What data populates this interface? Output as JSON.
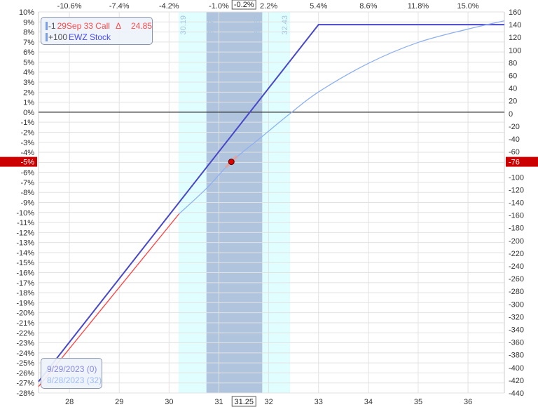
{
  "chart_data": {
    "type": "line",
    "x_ticks": [
      28,
      29,
      30,
      31,
      32,
      33,
      34,
      35,
      36
    ],
    "x_range": [
      27.38,
      36.73
    ],
    "top_ticks": [
      "-10.6%",
      "-7.4%",
      "-4.2%",
      "-1.0%",
      "2.2%",
      "5.4%",
      "8.6%",
      "11.8%",
      "15.0%"
    ],
    "top_current_label": "-0.2%",
    "current_price_label": "31.25",
    "left_axis": {
      "range": [
        -28,
        10
      ],
      "step": 1,
      "unit": "%"
    },
    "right_axis": {
      "range": [
        -440,
        160
      ],
      "step": 20
    },
    "grid": true,
    "bands": [
      {
        "from": 30.19,
        "to": 32.43,
        "label_from": "30.19",
        "label_to": "32.43",
        "color": "#e0feff"
      },
      {
        "from": 30.75,
        "to": 31.87,
        "label_from": "30.75",
        "label_to": "31.87",
        "color": "#b0c4de"
      }
    ],
    "series": [
      {
        "name": "9/29/2023 (0)",
        "color": "#4848c8",
        "x": [
          27.38,
          33,
          36.73
        ],
        "y": [
          -422,
          140,
          140
        ]
      },
      {
        "name": "8/28/2023 (32)",
        "color": "#8fb0f0",
        "x": [
          30.2,
          30.75,
          31.25,
          31.87,
          32.43,
          33,
          34,
          35,
          36,
          36.73
        ],
        "y": [
          -158,
          -118,
          -76,
          -36,
          0,
          34,
          79,
          112,
          133,
          146
        ]
      },
      {
        "color": "#ff4040",
        "x": [
          27.38,
          30.2
        ],
        "y": [
          -430,
          -158
        ]
      }
    ],
    "current_point": {
      "x": 31.25,
      "y": -76,
      "pct_label": "-5%",
      "value_label": "-76"
    },
    "marker_color": "#cc0000"
  },
  "legend_positions": {
    "rows": [
      {
        "qty": "-1",
        "name": "29Sep 33 Call",
        "delta_symbol": "Δ",
        "delta": "24.85",
        "color": "#ff4a4a"
      },
      {
        "qty": "+100",
        "name": "EWZ Stock",
        "color": "#4a4aff"
      }
    ]
  },
  "legend_dates": {
    "rows": [
      {
        "label": "9/29/2023 (0)",
        "color": "#8a8adf"
      },
      {
        "label": "8/28/2023 (32)",
        "color": "#a0bcf5"
      }
    ]
  }
}
